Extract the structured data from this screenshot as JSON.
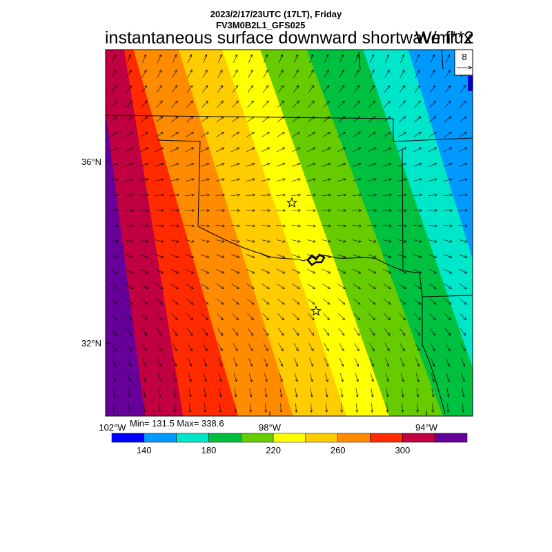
{
  "header": {
    "datetime_line": "2023/2/17/23UTC (17LT), Friday",
    "model_line": "FV3M0B2L1_GFS025",
    "title": "instantaneous surface downward shortwave flux",
    "units": "W/m**2"
  },
  "map": {
    "lat_labels": [
      "36°N",
      "32°N"
    ],
    "lon_labels": [
      "102°W",
      "98°W",
      "94°W"
    ],
    "stats": "Min= 131.5 Max= 338.6",
    "reference_vector_label": "8",
    "min_value": 131.5,
    "max_value": 338.6,
    "field_gradient_direction": "increasing toward southwest",
    "station_markers": [
      "star",
      "star"
    ]
  },
  "colorbar": {
    "colors": [
      "#0000ff",
      "#0099ff",
      "#00e6c8",
      "#00c040",
      "#66cc00",
      "#ffff00",
      "#ffcc00",
      "#ff8c00",
      "#ff2a00",
      "#c00040",
      "#660099"
    ],
    "tick_labels": [
      "140",
      "180",
      "220",
      "260",
      "300"
    ]
  }
}
